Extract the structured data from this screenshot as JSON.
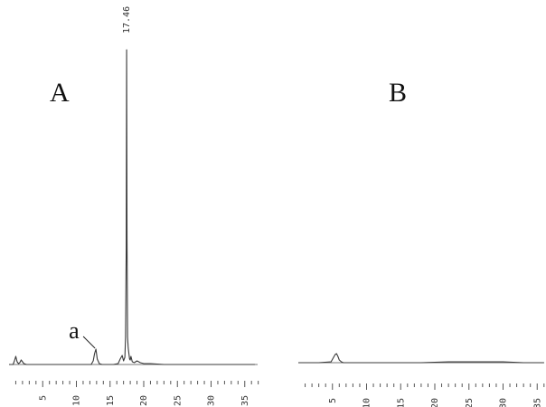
{
  "chart_data": [
    {
      "type": "line",
      "panel_label": "A",
      "xlim": [
        0,
        37
      ],
      "x_ticks": [
        5,
        10,
        15,
        20,
        25,
        30,
        35
      ],
      "x": [
        0.0,
        0.6,
        0.8,
        1.0,
        1.2,
        1.4,
        1.6,
        1.8,
        2.0,
        2.2,
        2.6,
        3.0,
        5.0,
        8.0,
        10.0,
        11.0,
        11.8,
        12.2,
        12.5,
        12.7,
        12.9,
        13.1,
        13.4,
        13.8,
        14.5,
        15.5,
        16.2,
        16.5,
        16.8,
        17.0,
        17.2,
        17.3,
        17.4,
        17.46,
        17.52,
        17.6,
        17.7,
        17.8,
        17.9,
        18.0,
        18.1,
        18.3,
        18.6,
        19.0,
        19.5,
        20.0,
        21.0,
        23.0,
        25.0,
        30.0,
        35.0,
        36.5
      ],
      "y": [
        0,
        0,
        4,
        9,
        3,
        1,
        2,
        5,
        3,
        1,
        0,
        0,
        0,
        0,
        0,
        0,
        0,
        0,
        4,
        12,
        17,
        6,
        1,
        0,
        0,
        0,
        1,
        6,
        10,
        4,
        8,
        30,
        130,
        348,
        140,
        30,
        18,
        12,
        6,
        5,
        9,
        3,
        2,
        4,
        2,
        1,
        1,
        0,
        0,
        0,
        0,
        0
      ],
      "peak_labels": [
        {
          "x": 17.46,
          "y": 348,
          "text": "17.46"
        }
      ],
      "annotations": [
        {
          "text": "a",
          "x": 12.9,
          "y": 17
        }
      ]
    },
    {
      "type": "line",
      "panel_label": "B",
      "xlim": [
        0,
        36
      ],
      "x_ticks": [
        5,
        10,
        15,
        20,
        25,
        30,
        35
      ],
      "x": [
        0.0,
        3.0,
        4.8,
        5.1,
        5.4,
        5.6,
        5.8,
        6.0,
        6.3,
        6.6,
        7.0,
        9.0,
        12.0,
        15.0,
        18.0,
        22.0,
        26.0,
        30.0,
        33.0,
        36.0
      ],
      "y": [
        0,
        0,
        1,
        5,
        9,
        10,
        7,
        3,
        1,
        0,
        0,
        0,
        0,
        0,
        0,
        1,
        1,
        1,
        0,
        0
      ],
      "peak_labels": [],
      "annotations": []
    }
  ]
}
